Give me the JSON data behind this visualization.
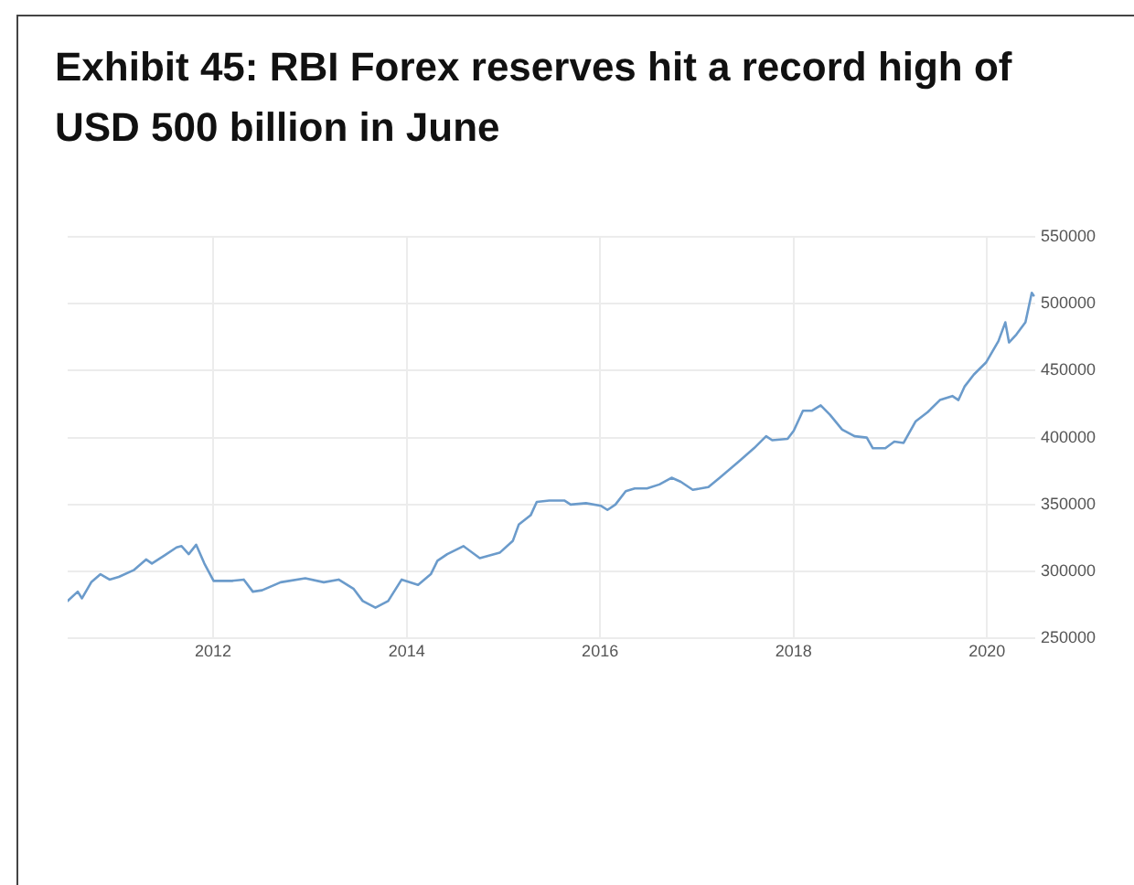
{
  "chart_data": {
    "type": "line",
    "title": "Exhibit 45: RBI Forex reserves hit a record high of USD 500 billion in June",
    "x": [
      "2010-07-01",
      "2010-08-08",
      "2010-08-24",
      "2010-09-28",
      "2010-11-02",
      "2010-12-06",
      "2011-01-10",
      "2011-03-07",
      "2011-04-23",
      "2011-05-15",
      "2011-07-01",
      "2011-08-16",
      "2011-09-04",
      "2011-10-01",
      "2011-10-29",
      "2011-11-29",
      "2012-01-03",
      "2012-03-11",
      "2012-04-26",
      "2012-05-30",
      "2012-07-04",
      "2012-09-12",
      "2012-12-14",
      "2013-02-22",
      "2013-04-19",
      "2013-06-15",
      "2013-07-19",
      "2013-09-05",
      "2013-10-23",
      "2013-12-13",
      "2014-02-13",
      "2014-04-02",
      "2014-04-27",
      "2014-06-03",
      "2014-08-03",
      "2014-10-04",
      "2014-12-18",
      "2015-02-06",
      "2015-02-28",
      "2015-04-14",
      "2015-05-07",
      "2015-06-23",
      "2015-08-19",
      "2015-09-12",
      "2015-11-09",
      "2016-01-05",
      "2016-01-29",
      "2016-02-28",
      "2016-04-07",
      "2016-05-11",
      "2016-06-26",
      "2016-08-12",
      "2016-09-27",
      "2016-11-01",
      "2016-12-16",
      "2017-02-13",
      "2017-03-28",
      "2017-06-07",
      "2017-08-04",
      "2017-09-19",
      "2017-10-12",
      "2017-12-09",
      "2018-01-01",
      "2018-02-05",
      "2018-03-10",
      "2018-04-13",
      "2018-05-18",
      "2018-07-03",
      "2018-08-19",
      "2018-10-04",
      "2018-10-27",
      "2018-12-13",
      "2019-01-16",
      "2019-02-20",
      "2019-04-06",
      "2019-05-22",
      "2019-07-07",
      "2019-08-23",
      "2019-09-15",
      "2019-10-08",
      "2019-11-12",
      "2019-12-28",
      "2020-02-13",
      "2020-03-10",
      "2020-03-24",
      "2020-04-21",
      "2020-05-25",
      "2020-06-18",
      "2020-06-25"
    ],
    "values": [
      278000,
      285000,
      280000,
      292000,
      298000,
      294000,
      296000,
      301000,
      309000,
      306000,
      312000,
      318000,
      319000,
      313000,
      320000,
      306000,
      293000,
      293000,
      294000,
      285000,
      286000,
      292000,
      295000,
      292000,
      294000,
      287000,
      278000,
      273000,
      278000,
      294000,
      290000,
      298000,
      308000,
      313000,
      319000,
      310000,
      314000,
      323000,
      335000,
      342000,
      352000,
      353000,
      353000,
      350000,
      351000,
      349000,
      346000,
      350000,
      360000,
      362000,
      362000,
      365000,
      370000,
      367000,
      361000,
      363000,
      370000,
      382000,
      392000,
      401000,
      398000,
      399000,
      405000,
      420000,
      420000,
      424000,
      417000,
      406000,
      401000,
      400000,
      392000,
      392000,
      397000,
      396000,
      412000,
      419000,
      428000,
      431000,
      428000,
      438000,
      447000,
      456000,
      472000,
      486000,
      471000,
      477000,
      486000,
      508000,
      506000
    ],
    "color": "#6b9bcb",
    "xlim": [
      "2010-07",
      "2020-07"
    ],
    "xticks": [
      "2012",
      "2014",
      "2016",
      "2018",
      "2020"
    ],
    "ylim": [
      250000,
      550000
    ],
    "yticks": [
      250000,
      300000,
      350000,
      400000,
      450000,
      500000,
      550000
    ],
    "grid": true
  }
}
